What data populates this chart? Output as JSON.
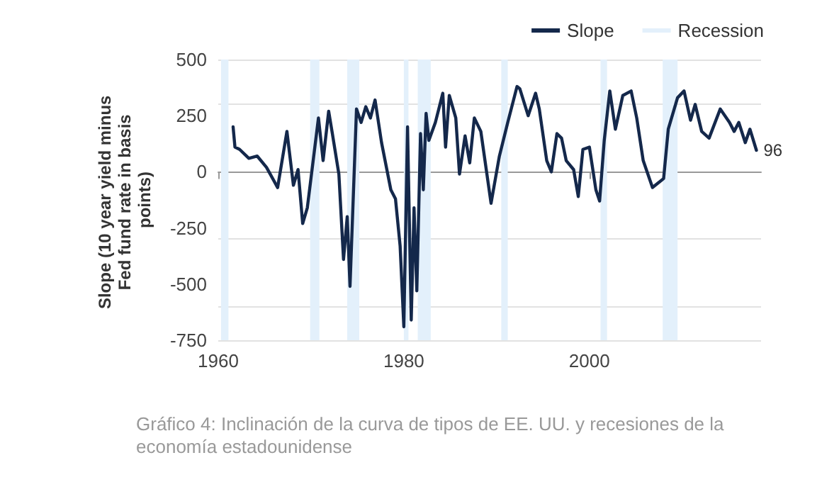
{
  "chart_data": {
    "type": "line",
    "title": "Gráfico 4: Inclinación de la curva de tipos de EE. UU. y recesiones de la economía estadounidense",
    "ylabel": "Slope (10 year yield minus Fed fund rate in basis points)",
    "xlim": [
      1960,
      2018.5
    ],
    "xticks": [
      1960,
      1980,
      2000
    ],
    "ylim": [
      -750,
      500
    ],
    "yticks": [
      -750,
      -500,
      -250,
      0,
      250,
      500
    ],
    "grid": "y",
    "legend": "top right",
    "marker": "none",
    "line_style": "solid",
    "series": [
      {
        "name": "Slope",
        "color": "#14284b",
        "x": [
          1961.6,
          1961.8,
          1962.3,
          1963.3,
          1964.2,
          1965.2,
          1966.4,
          1967.4,
          1968.1,
          1968.6,
          1969.1,
          1969.6,
          1970.8,
          1971.3,
          1971.9,
          1972.3,
          1973,
          1973.5,
          1973.9,
          1974.2,
          1974.9,
          1975.4,
          1975.9,
          1976.4,
          1976.9,
          1977.6,
          1978.6,
          1979.1,
          1979.6,
          1980,
          1980.4,
          1980.8,
          1981.1,
          1981.4,
          1981.8,
          1982.1,
          1982.4,
          1982.7,
          1983.4,
          1984.2,
          1984.5,
          1984.9,
          1985.6,
          1986,
          1986.6,
          1987.1,
          1987.6,
          1988.3,
          1989.4,
          1990.3,
          1991.2,
          1992.2,
          1992.5,
          1993.4,
          1994.2,
          1994.6,
          1995.4,
          1995.9,
          1996.5,
          1997,
          1997.5,
          1998.3,
          1998.8,
          1999.3,
          2000,
          2000.7,
          2001.1,
          2001.6,
          2002.2,
          2002.8,
          2003.6,
          2004.5,
          2005.1,
          2005.8,
          2006.8,
          2008,
          2008.5,
          2009.5,
          2010.2,
          2010.9,
          2011.4,
          2012.1,
          2012.9,
          2014.1,
          2015.1,
          2015.6,
          2016.1,
          2016.8,
          2017.3,
          2018
        ],
        "values": [
          200,
          110,
          100,
          60,
          70,
          20,
          -70,
          180,
          -60,
          10,
          -230,
          -160,
          240,
          50,
          270,
          170,
          -10,
          -390,
          -200,
          -510,
          280,
          220,
          290,
          240,
          320,
          130,
          -80,
          -120,
          -330,
          -690,
          200,
          -660,
          -160,
          -530,
          170,
          -80,
          260,
          140,
          220,
          350,
          110,
          340,
          240,
          -10,
          160,
          40,
          240,
          180,
          -140,
          70,
          220,
          380,
          370,
          250,
          350,
          280,
          50,
          0,
          170,
          150,
          50,
          10,
          -110,
          100,
          110,
          -80,
          -130,
          140,
          360,
          190,
          340,
          360,
          240,
          50,
          -70,
          -30,
          190,
          330,
          360,
          230,
          300,
          180,
          150,
          280,
          220,
          180,
          220,
          130,
          190,
          96
        ]
      }
    ],
    "bands": [
      {
        "axis": "x",
        "from": 1960.3,
        "to": 1961.1,
        "label": "Recession",
        "color": "#e3f0fb"
      },
      {
        "axis": "x",
        "from": 1969.9,
        "to": 1970.9,
        "color": "#e3f0fb"
      },
      {
        "axis": "x",
        "from": 1973.9,
        "to": 1975.2,
        "color": "#e3f0fb"
      },
      {
        "axis": "x",
        "from": 1980,
        "to": 1980.5,
        "color": "#e3f0fb"
      },
      {
        "axis": "x",
        "from": 1981.5,
        "to": 1982.9,
        "color": "#e3f0fb"
      },
      {
        "axis": "x",
        "from": 1990.5,
        "to": 1991.2,
        "color": "#e3f0fb"
      },
      {
        "axis": "x",
        "from": 2001.2,
        "to": 2001.9,
        "color": "#e3f0fb"
      },
      {
        "axis": "x",
        "from": 2007.9,
        "to": 2009.5,
        "color": "#e3f0fb"
      }
    ],
    "annotations": [
      {
        "text": "96",
        "x": 2018,
        "y": 96
      }
    ]
  }
}
